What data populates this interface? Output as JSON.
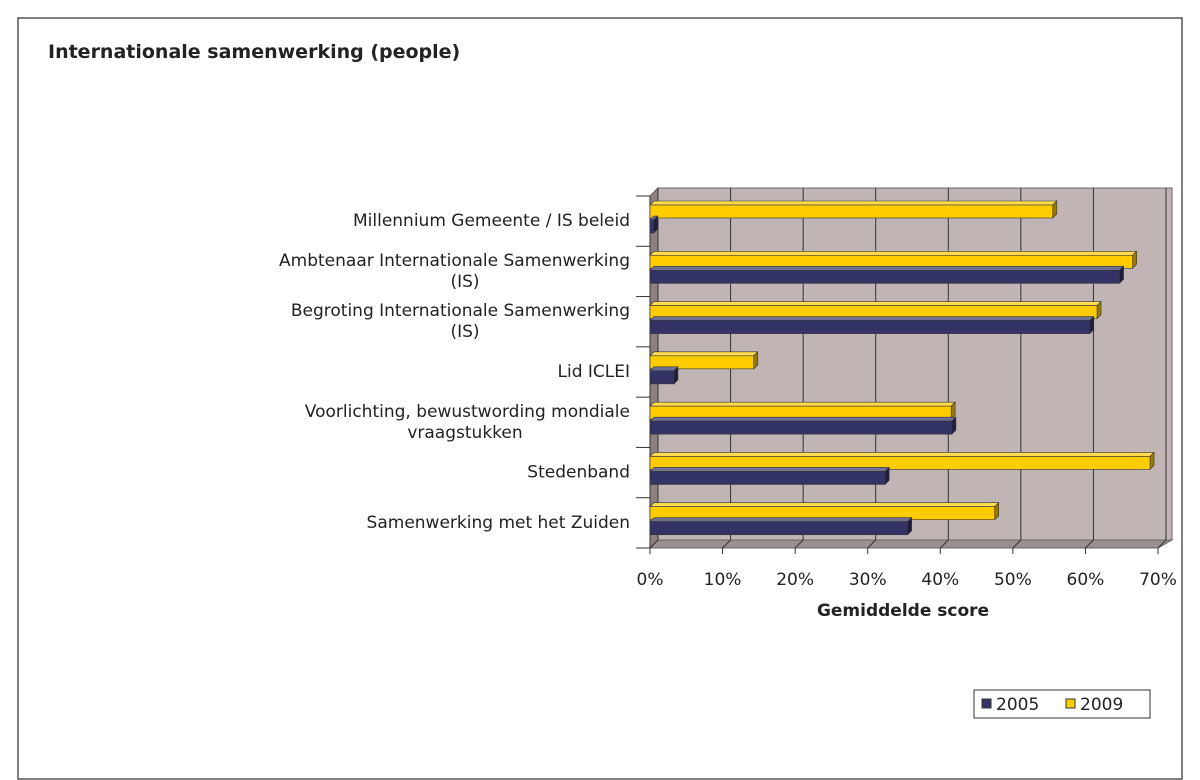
{
  "chart_data": {
    "type": "bar3d_horizontal",
    "title": "Internationale samenwerking (people)",
    "x_label": "Gemiddelde score",
    "categories": [
      "Millennium Gemeente / IS beleid",
      "Ambtenaar Internationale Samenwerking (IS)",
      "Begroting Internationale Samenwerking (IS)",
      "Lid ICLEI",
      "Voorlichting, bewustwording mondiale vraagstukken",
      "Stedenband",
      "Samenwerking met het Zuiden"
    ],
    "series": [
      {
        "name": "2005",
        "color": "#333366",
        "values": [
          0.5,
          64.7,
          60.6,
          3.3,
          41.6,
          32.4,
          35.5
        ]
      },
      {
        "name": "2009",
        "color": "#ffcc00",
        "values": [
          55.5,
          66.5,
          61.6,
          14.3,
          41.5,
          68.9,
          47.5
        ]
      }
    ],
    "xlim": [
      0,
      70
    ],
    "xticks": [
      {
        "value": 0,
        "label": "0%"
      },
      {
        "value": 10,
        "label": "10%"
      },
      {
        "value": 20,
        "label": "20%"
      },
      {
        "value": 30,
        "label": "30%"
      },
      {
        "value": 40,
        "label": "40%"
      },
      {
        "value": 50,
        "label": "50%"
      },
      {
        "value": 60,
        "label": "60%"
      },
      {
        "value": 70,
        "label": "70%"
      }
    ],
    "grid": true,
    "legend": "bottom-right"
  }
}
